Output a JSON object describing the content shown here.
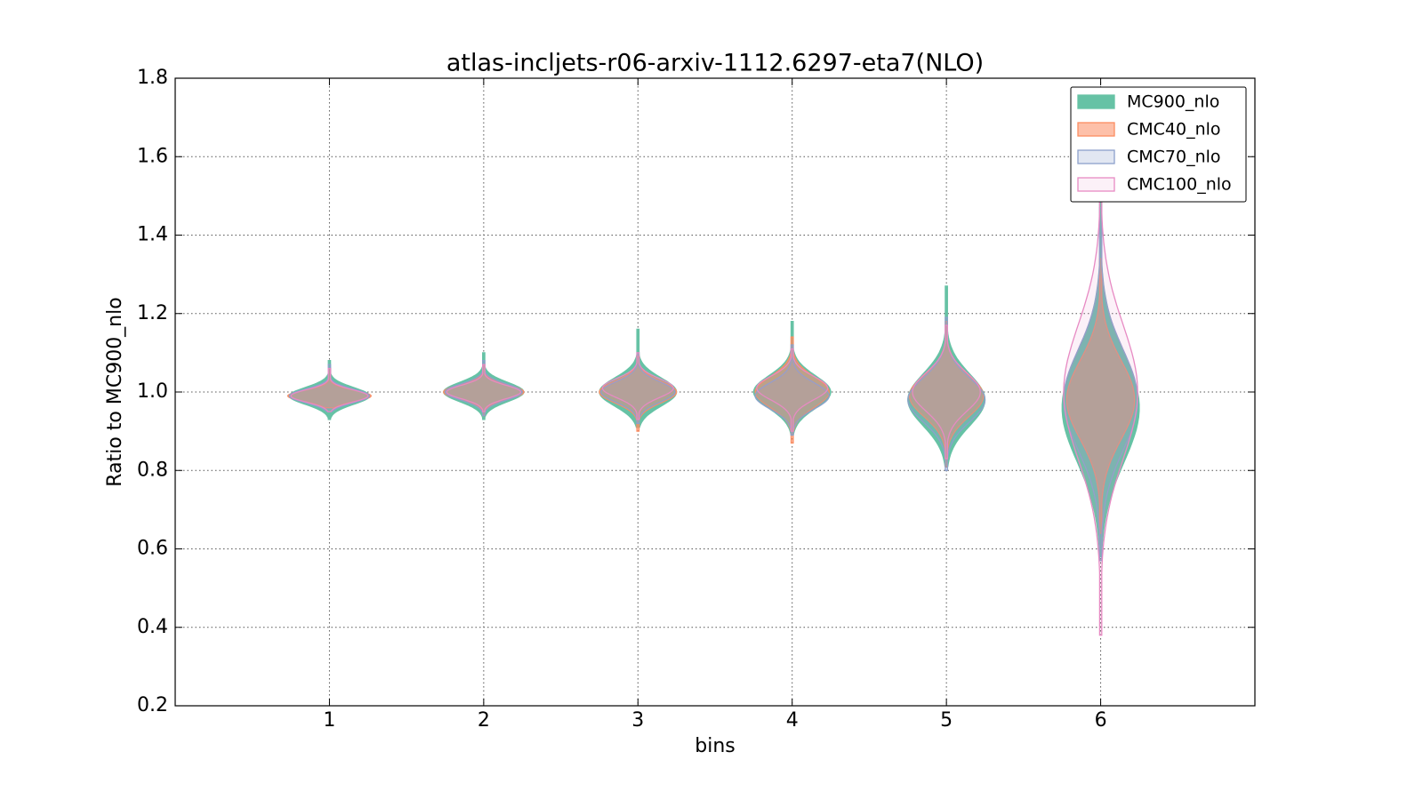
{
  "chart_data": {
    "type": "violin",
    "title": "atlas-incljets-r06-arxiv-1112.6297-eta7(NLO)",
    "x_label": "bins",
    "y_label": "Ratio to MC900_nlo",
    "x": [
      1,
      2,
      3,
      4,
      5,
      6
    ],
    "xlim": [
      0,
      7
    ],
    "xticks": [
      1,
      2,
      3,
      4,
      5,
      6
    ],
    "ylim": [
      0.2,
      1.8
    ],
    "yticks": [
      0.2,
      0.4,
      0.6,
      0.8,
      {
        "value": 1,
        "label": "1.0"
      },
      1.2,
      1.4,
      1.6,
      1.8
    ],
    "grid": true,
    "legend": "upper right",
    "series": [
      {
        "name": "MC900_nlo",
        "color": "#66c2a5",
        "alpha": 1,
        "violins": [
          {
            "min": 0.93,
            "max": 1.08,
            "peak": 0.99,
            "width": 0.26
          },
          {
            "min": 0.93,
            "max": 1.1,
            "peak": 1.0,
            "width": 0.26
          },
          {
            "min": 0.91,
            "max": 1.16,
            "peak": 1.0,
            "width": 0.25
          },
          {
            "min": 0.89,
            "max": 1.18,
            "peak": 1.0,
            "width": 0.25
          },
          {
            "min": 0.81,
            "max": 1.27,
            "peak": 0.98,
            "width": 0.25
          },
          {
            "min": 0.58,
            "max": 1.55,
            "peak": 0.96,
            "width": 0.25
          }
        ]
      },
      {
        "name": "CMC40_nlo",
        "color": "#fc8d62",
        "alpha": 0.55,
        "violins": [
          {
            "min": 0.96,
            "max": 1.06,
            "peak": 0.99,
            "width": 0.27
          },
          {
            "min": 0.94,
            "max": 1.07,
            "peak": 1.0,
            "width": 0.26
          },
          {
            "min": 0.9,
            "max": 1.09,
            "peak": 1.0,
            "width": 0.25
          },
          {
            "min": 0.87,
            "max": 1.14,
            "peak": 1.0,
            "width": 0.24
          },
          {
            "min": 0.81,
            "max": 1.18,
            "peak": 0.99,
            "width": 0.24
          },
          {
            "min": 0.64,
            "max": 1.34,
            "peak": 0.98,
            "width": 0.22
          }
        ]
      },
      {
        "name": "CMC70_nlo",
        "color": "#8da0cb",
        "alpha": 0.25,
        "violins": [
          {
            "min": 0.95,
            "max": 1.07,
            "peak": 0.99,
            "width": 0.26
          },
          {
            "min": 0.94,
            "max": 1.08,
            "peak": 1.0,
            "width": 0.25
          },
          {
            "min": 0.92,
            "max": 1.1,
            "peak": 1.0,
            "width": 0.24
          },
          {
            "min": 0.89,
            "max": 1.12,
            "peak": 0.99,
            "width": 0.24
          },
          {
            "min": 0.8,
            "max": 1.19,
            "peak": 0.98,
            "width": 0.25
          },
          {
            "min": 0.57,
            "max": 1.47,
            "peak": 0.98,
            "width": 0.24
          }
        ]
      },
      {
        "name": "CMC100_nlo",
        "color": "#e78ac3",
        "alpha": 0.12,
        "violins": [
          {
            "min": 0.95,
            "max": 1.06,
            "peak": 0.99,
            "width": 0.25
          },
          {
            "min": 0.95,
            "max": 1.07,
            "peak": 1.0,
            "width": 0.24
          },
          {
            "min": 0.93,
            "max": 1.1,
            "peak": 1.01,
            "width": 0.23
          },
          {
            "min": 0.9,
            "max": 1.11,
            "peak": 1.01,
            "width": 0.23
          },
          {
            "min": 0.83,
            "max": 1.17,
            "peak": 1.0,
            "width": 0.22
          },
          {
            "min": 0.38,
            "max": 1.58,
            "peak": 1.0,
            "width": 0.24
          }
        ]
      }
    ]
  }
}
